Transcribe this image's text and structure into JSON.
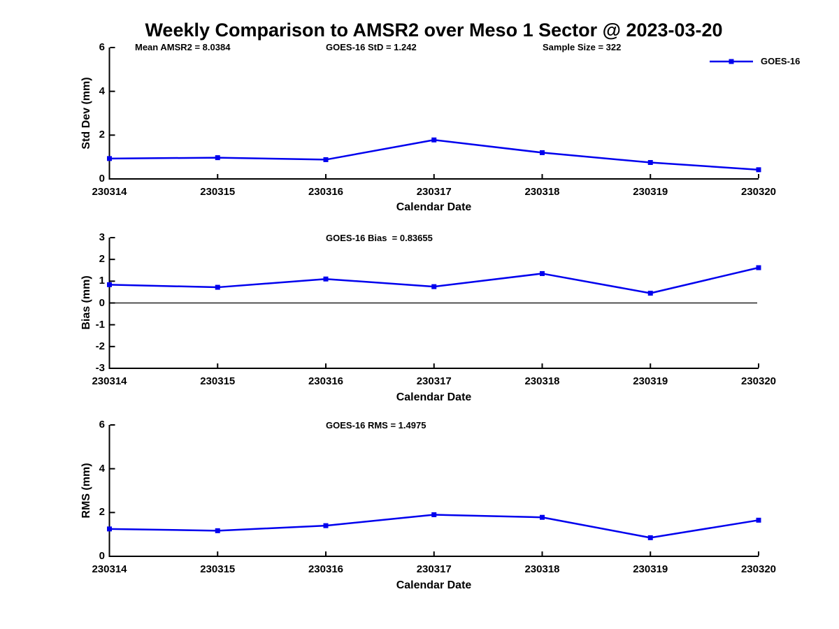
{
  "figure": {
    "title": "Weekly Comparison to AMSR2 over Meso 1 Sector @ 2023-03-20"
  },
  "legend": {
    "label": "GOES-16"
  },
  "colors": {
    "series_line": "#0000EE",
    "axes": "#000000",
    "text": "#000000",
    "zero_line": "#000000"
  },
  "chart_data": [
    {
      "type": "line",
      "subtitle": "",
      "annotations": [
        "Mean AMSR2 = 8.0384",
        "GOES-16 StD = 1.242",
        "Sample Size = 322"
      ],
      "categories": [
        "230314",
        "230315",
        "230316",
        "230317",
        "230318",
        "230319",
        "230320"
      ],
      "series": [
        {
          "name": "GOES-16",
          "values": [
            0.93,
            0.97,
            0.88,
            1.78,
            1.2,
            0.75,
            0.42
          ]
        }
      ],
      "xlabel": "Calendar Date",
      "ylabel": "Std Dev (mm)",
      "ylim": [
        0,
        6
      ],
      "yticks": [
        "0",
        "2",
        "4",
        "6"
      ],
      "grid": false,
      "legend_position": "top-right",
      "marker": "square"
    },
    {
      "type": "line",
      "subtitle": "GOES-16 Bias  = 0.83655",
      "categories": [
        "230314",
        "230315",
        "230316",
        "230317",
        "230318",
        "230319",
        "230320"
      ],
      "series": [
        {
          "name": "GOES-16",
          "values": [
            0.84,
            0.72,
            1.1,
            0.75,
            1.35,
            0.45,
            1.62
          ]
        }
      ],
      "xlabel": "Calendar Date",
      "ylabel": "Bias (mm)",
      "ylim": [
        -3,
        3
      ],
      "yticks": [
        "-3",
        "-2",
        "-1",
        "0",
        "1",
        "2",
        "3"
      ],
      "zero_line": 0,
      "grid": false,
      "marker": "square"
    },
    {
      "type": "line",
      "subtitle": "GOES-16 RMS = 1.4975",
      "categories": [
        "230314",
        "230315",
        "230316",
        "230317",
        "230318",
        "230319",
        "230320"
      ],
      "series": [
        {
          "name": "GOES-16",
          "values": [
            1.25,
            1.17,
            1.4,
            1.9,
            1.78,
            0.85,
            1.65
          ]
        }
      ],
      "xlabel": "Calendar Date",
      "ylabel": "RMS (mm)",
      "ylim": [
        0,
        6
      ],
      "yticks": [
        "0",
        "2",
        "4",
        "6"
      ],
      "grid": false,
      "marker": "square"
    }
  ]
}
